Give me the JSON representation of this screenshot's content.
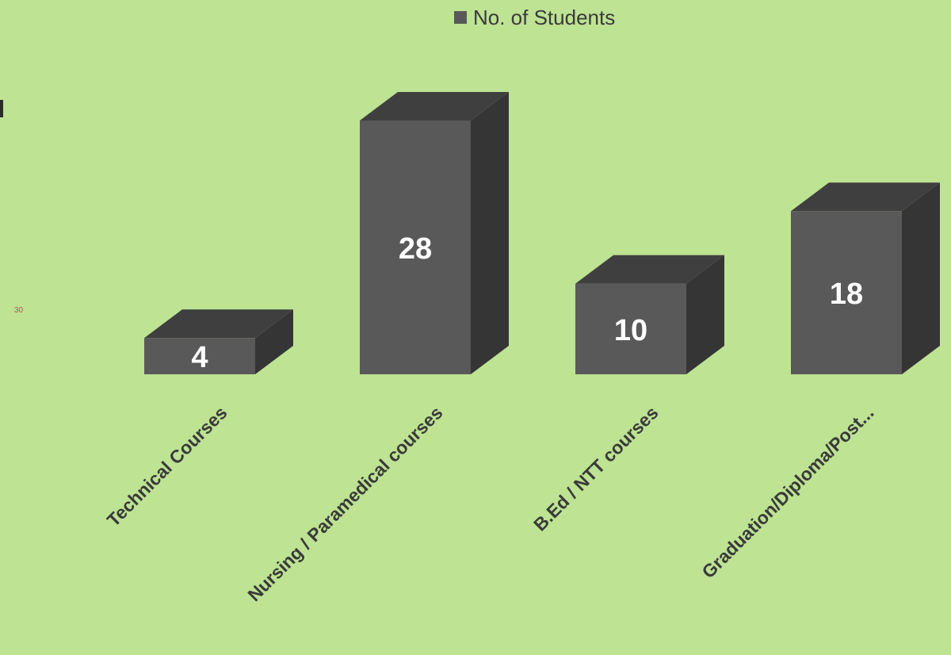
{
  "chart_data": {
    "type": "bar",
    "style": "3d-column",
    "categories": [
      "Technical Courses",
      "Nursing / Paramedical courses",
      "B.Ed / NTT courses",
      "Graduation/Diploma/Post..."
    ],
    "series": [
      {
        "name": "No. of Students",
        "values": [
          4,
          28,
          10,
          18
        ]
      }
    ],
    "data_labels": [
      "4",
      "28",
      "10",
      "18"
    ],
    "legend_position": "top",
    "grid": false
  },
  "stray_label": "30",
  "colors": {
    "background": "#bde393",
    "bar_front": "#595959",
    "bar_top": "#3f3f3f",
    "bar_side": "#353535",
    "data_label": "#ffffff",
    "category_label": "#3a3a3a"
  }
}
